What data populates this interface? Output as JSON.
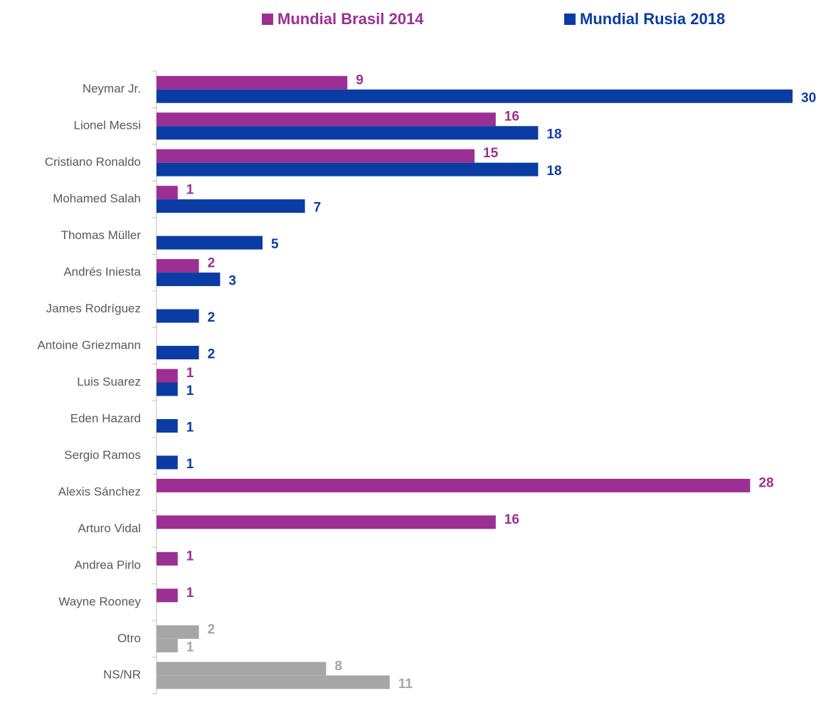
{
  "chart_data": {
    "type": "hbar",
    "categories": [
      "Neymar Jr.",
      "Lionel Messi",
      "Cristiano Ronaldo",
      "Mohamed Salah",
      "Thomas Müller",
      "Andrés Iniesta",
      "James Rodríguez",
      "Antoine Griezmann",
      "Luis Suarez",
      "Eden Hazard",
      "Sergio Ramos",
      "Alexis Sánchez",
      "Arturo Vidal",
      "Andrea Pirlo",
      "Wayne Rooney",
      "Otro",
      "NS/NR"
    ],
    "series": [
      {
        "name": "Mundial Brasil 2014",
        "color": "#9b2f93",
        "values": [
          9,
          16,
          15,
          1,
          null,
          2,
          null,
          null,
          1,
          null,
          null,
          28,
          16,
          1,
          1,
          2,
          8
        ],
        "colors": [
          "#9b2f93",
          "#9b2f93",
          "#9b2f93",
          "#9b2f93",
          "#9b2f93",
          "#9b2f93",
          "#9b2f93",
          "#9b2f93",
          "#9b2f93",
          "#9b2f93",
          "#9b2f93",
          "#9b2f93",
          "#9b2f93",
          "#9b2f93",
          "#9b2f93",
          "#a6a6a6",
          "#a6a6a6"
        ]
      },
      {
        "name": "Mundial Rusia 2018",
        "color": "#0a3ca3",
        "values": [
          30,
          18,
          18,
          7,
          5,
          3,
          2,
          2,
          1,
          1,
          1,
          null,
          null,
          null,
          null,
          1,
          11
        ],
        "colors": [
          "#0a3ca3",
          "#0a3ca3",
          "#0a3ca3",
          "#0a3ca3",
          "#0a3ca3",
          "#0a3ca3",
          "#0a3ca3",
          "#0a3ca3",
          "#0a3ca3",
          "#0a3ca3",
          "#0a3ca3",
          "#0a3ca3",
          "#0a3ca3",
          "#0a3ca3",
          "#0a3ca3",
          "#a6a6a6",
          "#a6a6a6"
        ]
      }
    ],
    "xlim": [
      0,
      30
    ],
    "legend": "top"
  }
}
